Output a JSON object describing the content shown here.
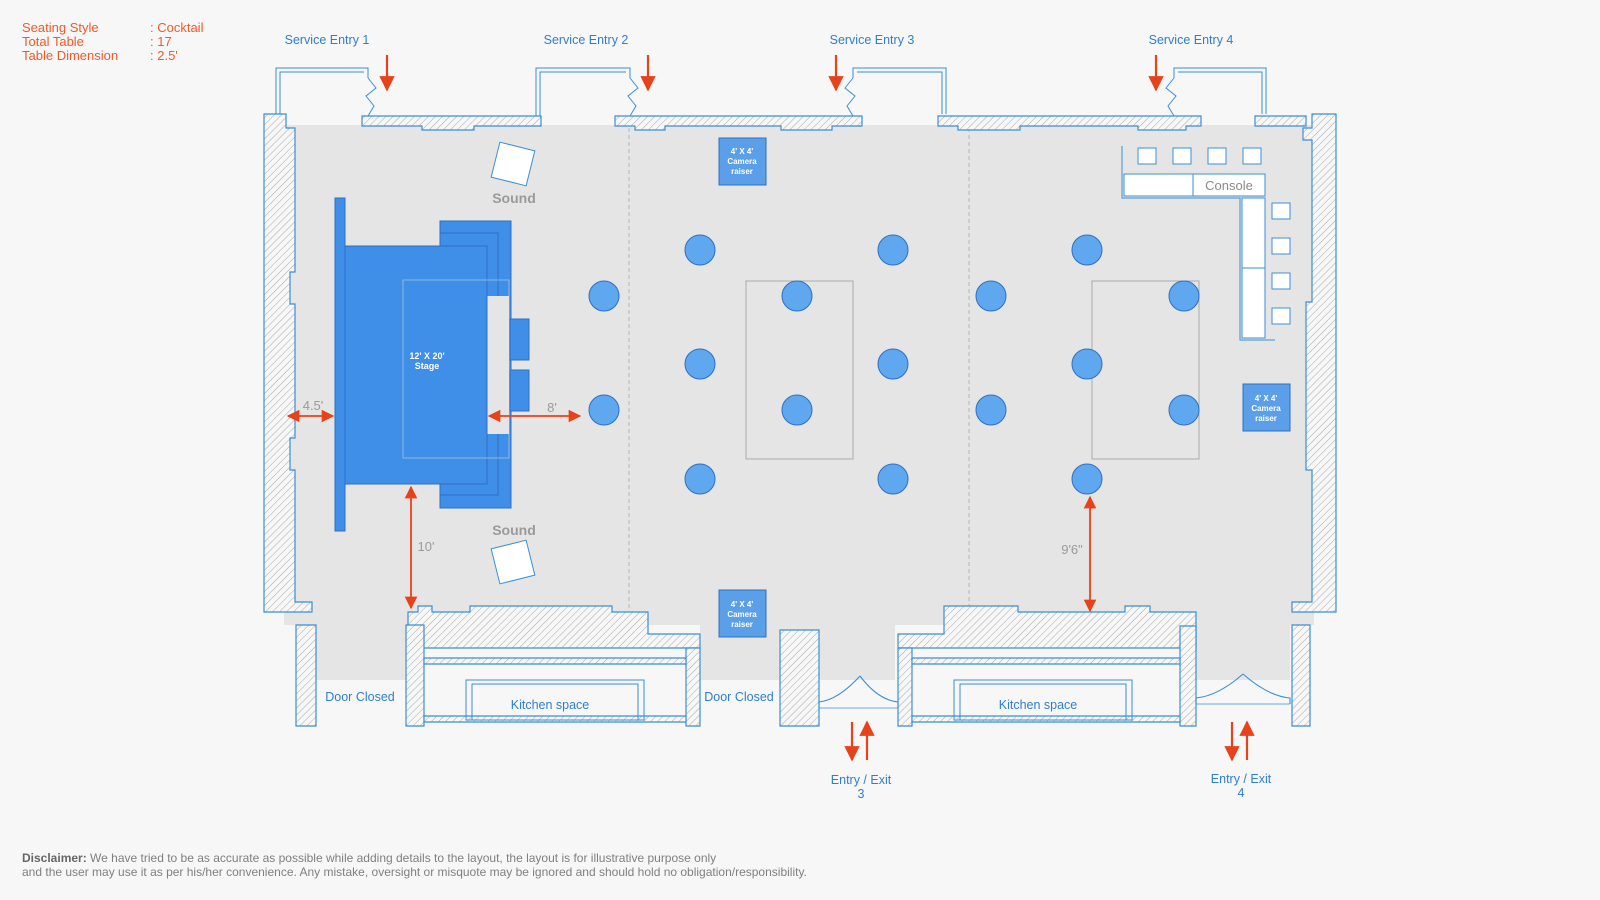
{
  "info": {
    "seating_style_label": "Seating Style",
    "seating_style_value": ": Cocktail",
    "total_table_label": "Total Table",
    "total_table_value": ": 17",
    "table_dimension_label": "Table Dimension",
    "table_dimension_value": ": 2.5'"
  },
  "service_entries": [
    "Service Entry 1",
    "Service Entry 2",
    "Service Entry 3",
    "Service Entry 4"
  ],
  "stage": {
    "line1": "12' X 20'",
    "line2": "Stage"
  },
  "sound": [
    "Sound",
    "Sound"
  ],
  "camera_raiser": {
    "line1": "4' X 4'",
    "line2": "Camera",
    "line3": "raiser"
  },
  "console_label": "Console",
  "dimensions": {
    "left_gap": "4.5'",
    "front_gap": "8'",
    "stage_wall_gap": "10'",
    "table_wall_gap": "9'6\""
  },
  "doors_closed": [
    "Door Closed",
    "Door Closed"
  ],
  "kitchens": [
    "Kitchen space",
    "Kitchen space"
  ],
  "entry_exit_3": {
    "line1": "Entry / Exit",
    "line2": "3"
  },
  "entry_exit_4": {
    "line1": "Entry / Exit",
    "line2": "4"
  },
  "disclaimer": {
    "label": "Disclaimer:",
    "line1": "We have tried to be as accurate as possible while adding details to the layout, the layout is for illustrative purpose only",
    "line2": "and the user may use it as per his/her convenience. Any mistake, oversight or misquote may be ignored and should hold no obligation/responsibility."
  },
  "colors": {
    "wall_blue": "#3a8fd8",
    "element_blue": "#3f8ee8",
    "table_blue": "#5fa8f0",
    "arrow_red": "#e8421a",
    "floor_gray": "#e5e5e5",
    "info_orange": "#f05a28"
  }
}
